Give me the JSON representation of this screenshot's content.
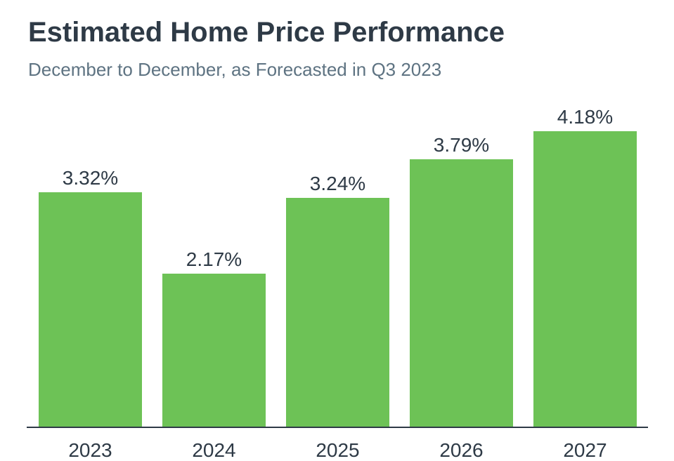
{
  "header": {
    "title": "Estimated Home Price Performance",
    "subtitle": "December to December, as Forecasted in Q3 2023"
  },
  "chart_data": {
    "type": "bar",
    "title": "Estimated Home Price Performance",
    "subtitle": "December to December, as Forecasted in Q3 2023",
    "categories": [
      "2023",
      "2024",
      "2025",
      "2026",
      "2027"
    ],
    "values": [
      3.32,
      2.17,
      3.24,
      3.79,
      4.18
    ],
    "value_labels": [
      "3.32%",
      "2.17%",
      "3.24%",
      "3.79%",
      "4.18%"
    ],
    "xlabel": "",
    "ylabel": "",
    "ylim": [
      0,
      4.65
    ],
    "grid": false,
    "legend": false,
    "bar_color": "#6DC256",
    "text_color": "#2E3A46",
    "subtitle_color": "#5E7382",
    "axis_color": "#2E3A46",
    "background_color": "#FFFFFF"
  }
}
